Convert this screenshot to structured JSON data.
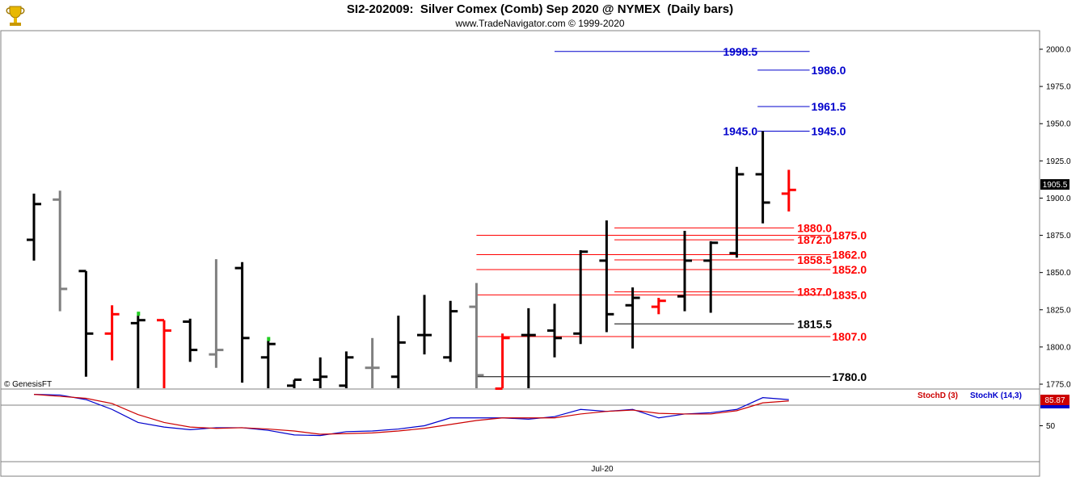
{
  "header": {
    "title": "SI2-202009:  Silver Comex (Comb) Sep 2020 @ NYMEX  (Daily bars)",
    "subtitle": "www.TradeNavigator.com © 1999-2020"
  },
  "watermark": "© GenesisFT",
  "logo_icon": "trophy-icon",
  "colors": {
    "up_bar": "#000000",
    "down_bar": "#ff0000",
    "inside_bar": "#808080",
    "blue_level": "#0000cc",
    "red_level": "#ff0000",
    "black_level": "#000000",
    "stoch_d": "#cc0000",
    "stoch_k": "#0000cc",
    "price_marker_bg": "#000000",
    "stoch_marker_bg": "#cc0000"
  },
  "chart_data": [
    {
      "type": "ohlc",
      "panel": "price",
      "title": "SI2-202009:  Silver Comex (Comb) Sep 2020 @ NYMEX  (Daily bars)",
      "ylim": [
        1772,
        2005
      ],
      "ticks": [
        "1775.0",
        "1800.0",
        "1825.0",
        "1850.0",
        "1875.0",
        "1900.0",
        "1925.0",
        "1950.0",
        "1975.0",
        "2000.0"
      ],
      "xlabel": "Jul-20",
      "last_price": "1905.5",
      "bars": [
        {
          "h": 1903,
          "l": 1858,
          "o": 1872,
          "c": 1896,
          "color": "black"
        },
        {
          "h": 1905,
          "l": 1824,
          "o": 1899,
          "c": 1839,
          "color": "gray"
        },
        {
          "h": 1851,
          "l": 1780,
          "o": 1851,
          "c": 1809,
          "color": "black"
        },
        {
          "h": 1828,
          "l": 1791,
          "o": 1809,
          "c": 1822,
          "color": "red"
        },
        {
          "h": 1821,
          "l": 1772,
          "o": 1816,
          "c": 1818,
          "color": "black",
          "flag": true
        },
        {
          "h": 1818,
          "l": 1772,
          "o": 1818,
          "c": 1811,
          "color": "red"
        },
        {
          "h": 1819,
          "l": 1790,
          "o": 1817,
          "c": 1798,
          "color": "black"
        },
        {
          "h": 1859,
          "l": 1786,
          "o": 1795,
          "c": 1798,
          "color": "gray"
        },
        {
          "h": 1857,
          "l": 1776,
          "o": 1853,
          "c": 1806,
          "color": "black"
        },
        {
          "h": 1804,
          "l": 1772,
          "o": 1793,
          "c": 1802,
          "color": "black",
          "flag": true
        },
        {
          "h": 1778,
          "l": 1772,
          "o": 1774,
          "c": 1778,
          "color": "black"
        },
        {
          "h": 1793,
          "l": 1772,
          "o": 1778,
          "c": 1780,
          "color": "black"
        },
        {
          "h": 1797,
          "l": 1772,
          "o": 1774,
          "c": 1793,
          "color": "black"
        },
        {
          "h": 1806,
          "l": 1772,
          "o": 1786,
          "c": 1786,
          "color": "gray"
        },
        {
          "h": 1821,
          "l": 1772,
          "o": 1780,
          "c": 1803,
          "color": "black"
        },
        {
          "h": 1835,
          "l": 1795,
          "o": 1808,
          "c": 1808,
          "color": "black"
        },
        {
          "h": 1831,
          "l": 1790,
          "o": 1793,
          "c": 1824,
          "color": "black"
        },
        {
          "h": 1843,
          "l": 1772,
          "o": 1827,
          "c": 1781,
          "color": "gray"
        },
        {
          "h": 1809,
          "l": 1772,
          "o": 1772,
          "c": 1806,
          "color": "red"
        },
        {
          "h": 1826,
          "l": 1772,
          "o": 1808,
          "c": 1808,
          "color": "black"
        },
        {
          "h": 1829,
          "l": 1793,
          "o": 1811,
          "c": 1806,
          "color": "black"
        },
        {
          "h": 1865,
          "l": 1802,
          "o": 1809,
          "c": 1864,
          "color": "black"
        },
        {
          "h": 1885,
          "l": 1810,
          "o": 1858,
          "c": 1822,
          "color": "black"
        },
        {
          "h": 1840,
          "l": 1799,
          "o": 1828,
          "c": 1833,
          "color": "black"
        },
        {
          "h": 1833,
          "l": 1822,
          "o": 1827,
          "c": 1831,
          "color": "red"
        },
        {
          "h": 1878,
          "l": 1824,
          "o": 1834,
          "c": 1858,
          "color": "black"
        },
        {
          "h": 1871,
          "l": 1823,
          "o": 1858,
          "c": 1870,
          "color": "black"
        },
        {
          "h": 1921,
          "l": 1860,
          "o": 1863,
          "c": 1916,
          "color": "black"
        },
        {
          "h": 1945,
          "l": 1883,
          "o": 1916,
          "c": 1897,
          "color": "black"
        },
        {
          "h": 1919,
          "l": 1891,
          "o": 1903,
          "c": 1905.5,
          "color": "red"
        }
      ],
      "levels": [
        {
          "value": 1998.5,
          "label": "1998.5",
          "color": "blue",
          "label_side": "left",
          "x_start": 20,
          "x_end": 29.8
        },
        {
          "value": 1986.0,
          "label": "1986.0",
          "color": "blue",
          "label_side": "right",
          "x_start": 27.8,
          "x_end": 29.8
        },
        {
          "value": 1961.5,
          "label": "1961.5",
          "color": "blue",
          "label_side": "right",
          "x_start": 27.8,
          "x_end": 29.8
        },
        {
          "value": 1945.0,
          "label": "1945.0",
          "color": "blue",
          "label_side": "both",
          "x_start": 27.8,
          "x_end": 29.8
        },
        {
          "value": 1880.0,
          "label": "1880.0",
          "color": "red",
          "label_side": "mid",
          "x_start": 22.3,
          "x_end": 29.2
        },
        {
          "value": 1875.0,
          "label": "1875.0",
          "color": "red",
          "label_side": "right",
          "x_start": 17.0,
          "x_end": 30.6
        },
        {
          "value": 1872.0,
          "label": "1872.0",
          "color": "red",
          "label_side": "mid",
          "x_start": 22.3,
          "x_end": 29.2
        },
        {
          "value": 1862.0,
          "label": "1862.0",
          "color": "red",
          "label_side": "right",
          "x_start": 17.0,
          "x_end": 30.6
        },
        {
          "value": 1858.5,
          "label": "1858.5",
          "color": "red",
          "label_side": "mid",
          "x_start": 22.3,
          "x_end": 29.2
        },
        {
          "value": 1852.0,
          "label": "1852.0",
          "color": "red",
          "label_side": "right",
          "x_start": 17.0,
          "x_end": 30.6
        },
        {
          "value": 1837.0,
          "label": "1837.0",
          "color": "red",
          "label_side": "mid",
          "x_start": 22.3,
          "x_end": 29.2
        },
        {
          "value": 1835.0,
          "label": "1835.0",
          "color": "red",
          "label_side": "right",
          "x_start": 17.0,
          "x_end": 30.6
        },
        {
          "value": 1815.5,
          "label": "1815.5",
          "color": "black",
          "label_side": "mid",
          "x_start": 22.3,
          "x_end": 29.2
        },
        {
          "value": 1807.0,
          "label": "1807.0",
          "color": "red",
          "label_side": "right",
          "x_start": 17.0,
          "x_end": 30.6
        },
        {
          "value": 1780.0,
          "label": "1780.0",
          "color": "black",
          "label_side": "right",
          "x_start": 17.0,
          "x_end": 30.6
        }
      ]
    },
    {
      "type": "line",
      "panel": "stochastic",
      "ylim": [
        0,
        100
      ],
      "ticks": [
        "50"
      ],
      "legend": [
        "StochD (3)",
        "StochK (14,3)"
      ],
      "last_value": "85.87",
      "series": [
        {
          "name": "StochK (14,3)",
          "color": "blue",
          "values": [
            98,
            97,
            90,
            75,
            55,
            48,
            44,
            47,
            47,
            43,
            36,
            35,
            41,
            42,
            45,
            50,
            62,
            62,
            62,
            60,
            64,
            75,
            72,
            75,
            62,
            68,
            70,
            75,
            93,
            90
          ]
        },
        {
          "name": "StochD (3)",
          "color": "red",
          "values": [
            98,
            95,
            92,
            84,
            67,
            55,
            48,
            46,
            47,
            45,
            42,
            37,
            38,
            39,
            42,
            46,
            52,
            58,
            62,
            62,
            62,
            68,
            72,
            74,
            69,
            68,
            68,
            73,
            85,
            88
          ]
        }
      ]
    }
  ]
}
